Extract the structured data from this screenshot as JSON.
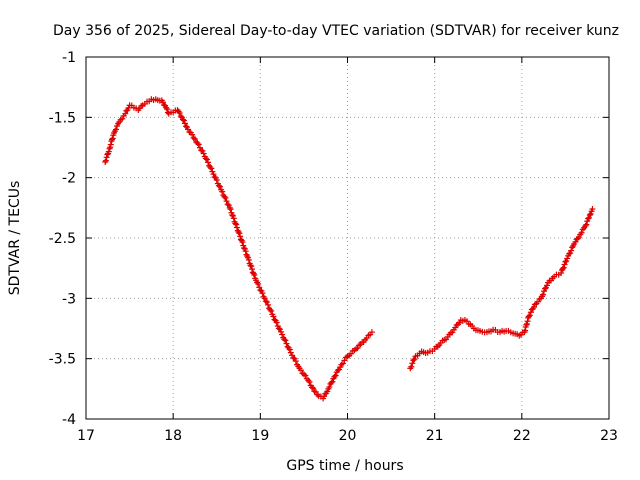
{
  "chart_data": {
    "type": "scatter",
    "title": "Day 356 of 2025, Sidereal Day-to-day VTEC variation (SDTVAR) for receiver kunz",
    "xlabel": "GPS time / hours",
    "ylabel": "SDTVAR / TECUs",
    "xlim": [
      17,
      23
    ],
    "ylim": [
      -4,
      -1
    ],
    "xticks": [
      17,
      18,
      19,
      20,
      21,
      22,
      23
    ],
    "yticks": [
      -4,
      -3.5,
      -3,
      -2.5,
      -2,
      -1.5,
      -1
    ],
    "xtick_labels": [
      "17",
      "18",
      "19",
      "20",
      "21",
      "22",
      "23"
    ],
    "ytick_labels": [
      "-4",
      "-3.5",
      "-3",
      "-2.5",
      "-2",
      "-1.5",
      "-1"
    ],
    "grid": true,
    "marker": "+",
    "color": "#e00000",
    "series": [
      {
        "name": "segment-1",
        "x": [
          17.22,
          17.27,
          17.32,
          17.38,
          17.45,
          17.5,
          17.55,
          17.6,
          17.65,
          17.7,
          17.75,
          17.8,
          17.87,
          17.92,
          17.95,
          18.0,
          18.05,
          18.1,
          18.17,
          18.25,
          18.35,
          18.45,
          18.55,
          18.65,
          18.75,
          18.85,
          18.95,
          19.05,
          19.15,
          19.25,
          19.35,
          19.45,
          19.55,
          19.62,
          19.67,
          19.72,
          19.78,
          19.85,
          19.93,
          20.0,
          20.08,
          20.15,
          20.22,
          20.28
        ],
        "y": [
          -1.87,
          -1.76,
          -1.63,
          -1.54,
          -1.47,
          -1.4,
          -1.42,
          -1.44,
          -1.4,
          -1.37,
          -1.35,
          -1.35,
          -1.36,
          -1.42,
          -1.47,
          -1.46,
          -1.44,
          -1.5,
          -1.6,
          -1.68,
          -1.8,
          -1.95,
          -2.1,
          -2.25,
          -2.45,
          -2.65,
          -2.85,
          -3.0,
          -3.15,
          -3.3,
          -3.45,
          -3.58,
          -3.68,
          -3.77,
          -3.81,
          -3.83,
          -3.75,
          -3.65,
          -3.55,
          -3.48,
          -3.43,
          -3.38,
          -3.33,
          -3.28
        ]
      },
      {
        "name": "segment-2",
        "x": [
          20.72,
          20.78,
          20.85,
          20.92,
          21.0,
          21.07,
          21.15,
          21.22,
          21.3,
          21.37,
          21.45,
          21.52,
          21.6,
          21.67,
          21.75,
          21.82,
          21.9,
          21.97,
          22.03,
          22.08,
          22.15,
          22.22,
          22.3,
          22.37,
          22.45,
          22.52,
          22.6,
          22.67,
          22.73,
          22.78,
          22.81
        ],
        "y": [
          -3.58,
          -3.48,
          -3.44,
          -3.45,
          -3.42,
          -3.37,
          -3.32,
          -3.26,
          -3.18,
          -3.19,
          -3.25,
          -3.27,
          -3.28,
          -3.26,
          -3.28,
          -3.27,
          -3.29,
          -3.31,
          -3.28,
          -3.15,
          -3.05,
          -3.0,
          -2.87,
          -2.82,
          -2.79,
          -2.67,
          -2.55,
          -2.47,
          -2.4,
          -2.31,
          -2.26
        ]
      }
    ]
  }
}
